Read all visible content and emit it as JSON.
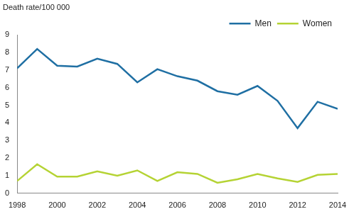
{
  "chart_data": {
    "type": "line",
    "title": "Death rate/100 000",
    "x": [
      1998,
      1999,
      2000,
      2001,
      2002,
      2003,
      2004,
      2005,
      2006,
      2007,
      2008,
      2009,
      2010,
      2011,
      2012,
      2013,
      2014
    ],
    "series": [
      {
        "name": "Men",
        "color": "#1f6fa3",
        "values": [
          7.1,
          8.2,
          7.25,
          7.2,
          7.65,
          7.35,
          6.3,
          7.05,
          6.65,
          6.4,
          5.8,
          5.6,
          6.1,
          5.25,
          3.7,
          5.2,
          4.8
        ]
      },
      {
        "name": "Women",
        "color": "#b5d334",
        "values": [
          0.7,
          1.65,
          0.95,
          0.95,
          1.25,
          1.0,
          1.3,
          0.7,
          1.2,
          1.1,
          0.6,
          0.8,
          1.1,
          0.85,
          0.65,
          1.05,
          1.1
        ]
      }
    ],
    "xlim": [
      1998,
      2014
    ],
    "xticks": [
      1998,
      2000,
      2002,
      2004,
      2006,
      2008,
      2010,
      2012,
      2014
    ],
    "ylim": [
      0,
      9
    ],
    "yticks": [
      0,
      1,
      2,
      3,
      4,
      5,
      6,
      7,
      8,
      9
    ],
    "grid": false,
    "legend": "top-right"
  }
}
